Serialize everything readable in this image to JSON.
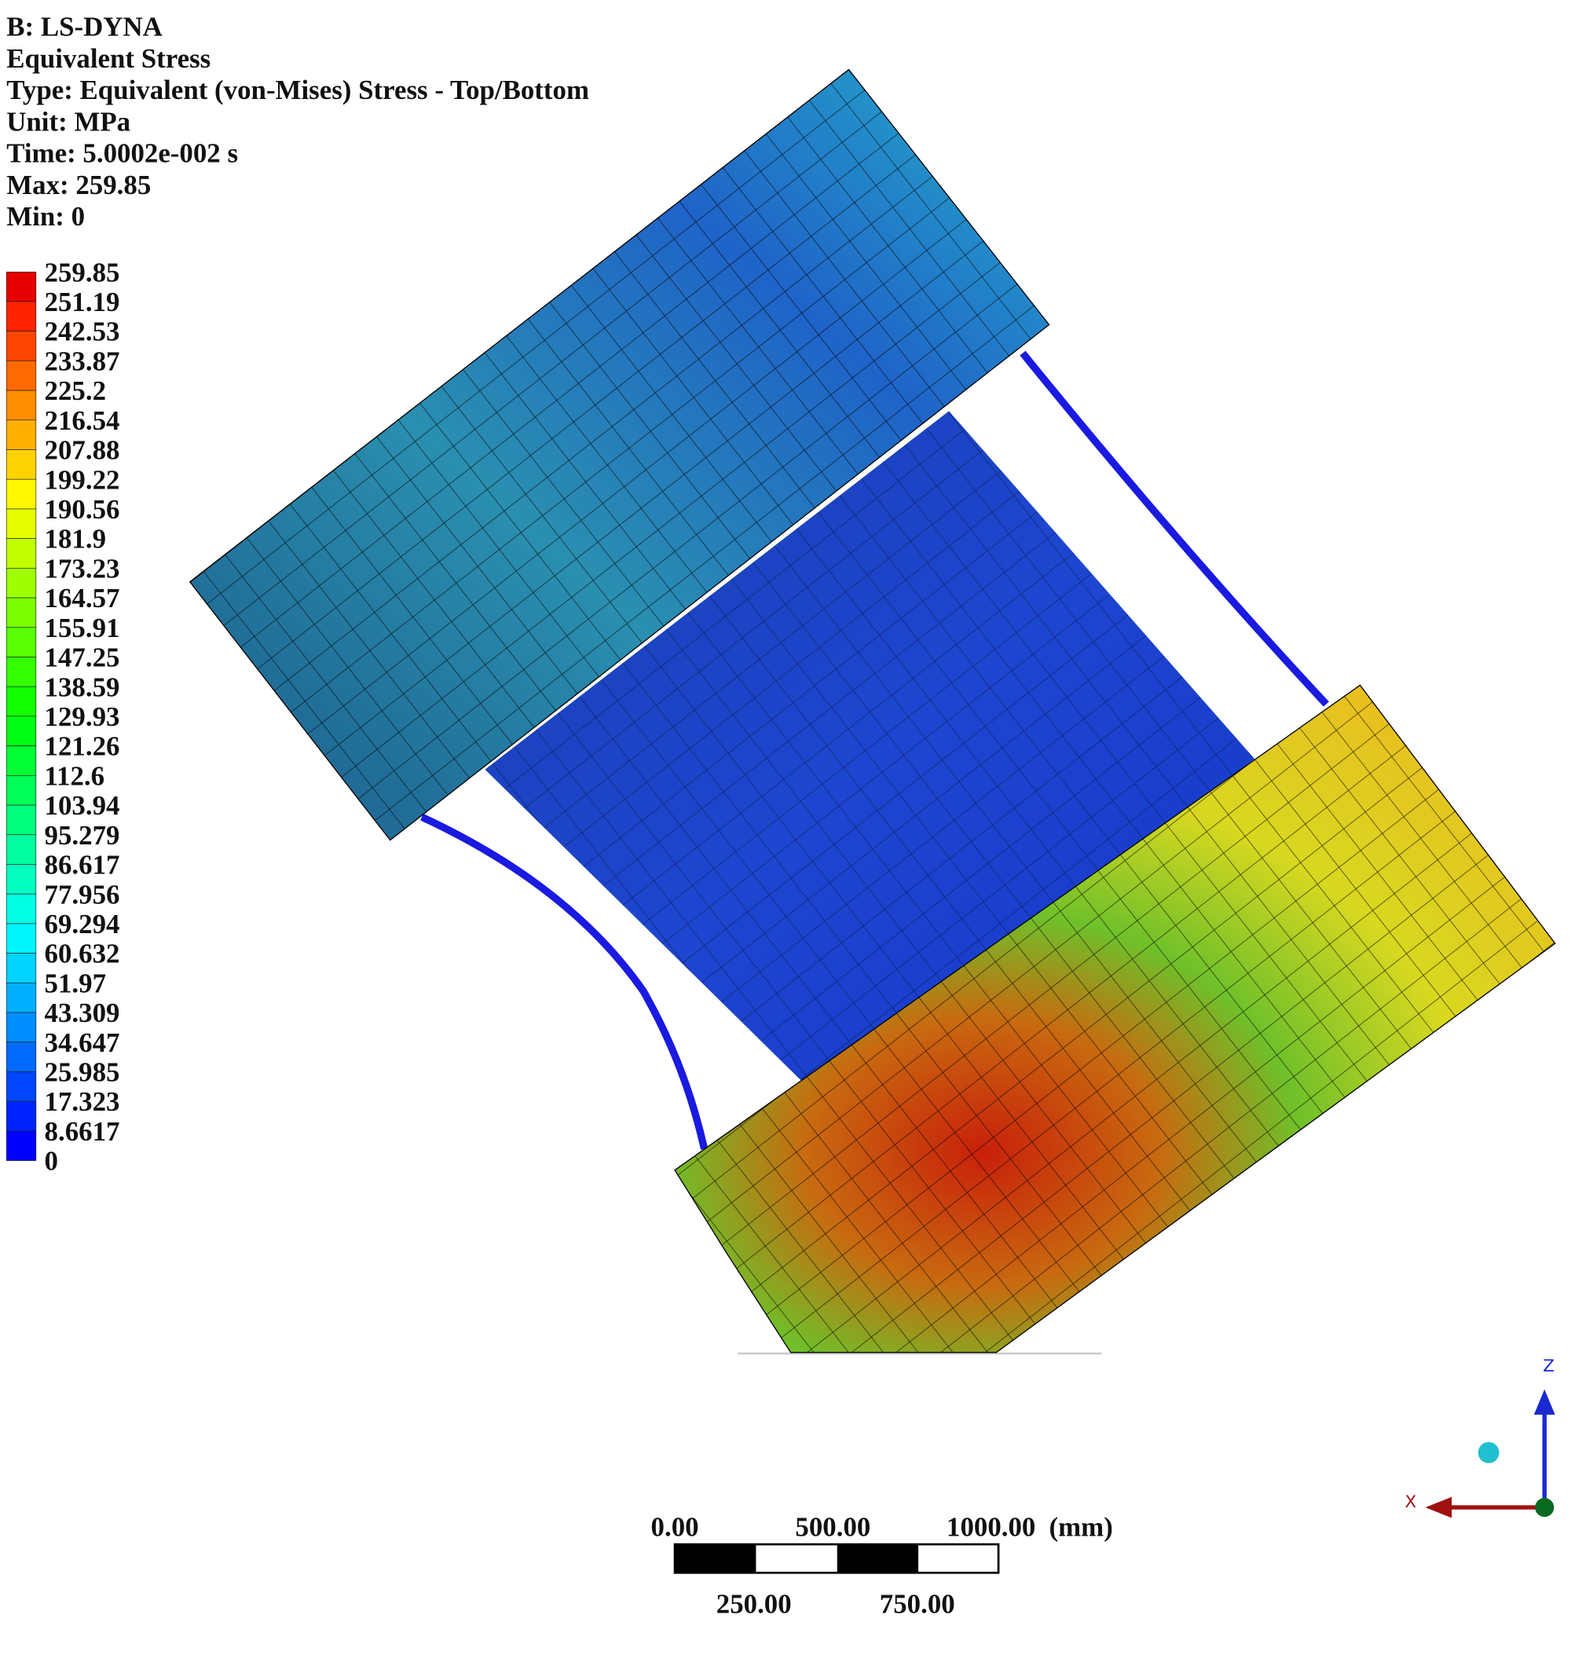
{
  "header": {
    "lines": [
      "B: LS-DYNA",
      "Equivalent Stress",
      "Type: Equivalent (von-Mises) Stress - Top/Bottom",
      "Unit: MPa",
      "Time: 5.0002e-002 s",
      "Max: 259.85",
      "Min: 0"
    ]
  },
  "legend": {
    "labels": [
      "259.85",
      "251.19",
      "242.53",
      "233.87",
      "225.2",
      "216.54",
      "207.88",
      "199.22",
      "190.56",
      "181.9",
      "173.23",
      "164.57",
      "155.91",
      "147.25",
      "138.59",
      "129.93",
      "121.26",
      "112.6",
      "103.94",
      "95.279",
      "86.617",
      "77.956",
      "69.294",
      "60.632",
      "51.97",
      "43.309",
      "34.647",
      "25.985",
      "17.323",
      "8.6617",
      "0"
    ]
  },
  "scale_bar": {
    "top_labels": [
      "0.00",
      "500.00",
      "1000.00"
    ],
    "unit": "(mm)",
    "bottom_labels": [
      "250.00",
      "750.00"
    ]
  },
  "triad": {
    "x_label": "X",
    "z_label": "Z"
  }
}
